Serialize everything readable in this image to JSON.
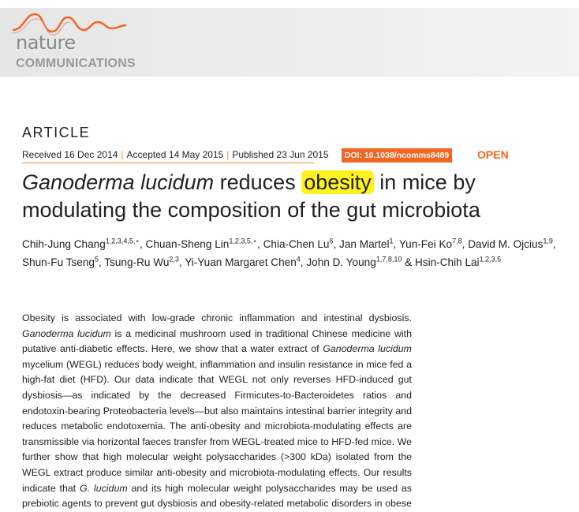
{
  "header": {
    "journal_name": "nature",
    "journal_subtitle": "COMMUNICATIONS"
  },
  "article_type": "ARTICLE",
  "dates": {
    "received": "Received 16 Dec 2014",
    "accepted": "Accepted 14 May 2015",
    "published": "Published 23 Jun 2015",
    "separator": "|"
  },
  "doi": "DOI: 10.1038/ncomms8489",
  "open_access": "OPEN",
  "title": {
    "italic_part": "Ganoderma lucidum",
    "before_highlight": "reduces",
    "highlight": "obesity",
    "rest": "in mice by modulating the composition of the gut microbiota"
  },
  "authors": {
    "separator": ",",
    "final_joiner": "&",
    "list": [
      {
        "name": "Chih-Jung Chang",
        "affiliations": "1,2,3,4,5,⋆"
      },
      {
        "name": "Chuan-Sheng Lin",
        "affiliations": "1,2,3,5,⋆"
      },
      {
        "name": "Chia-Chen Lu",
        "affiliations": "6"
      },
      {
        "name": "Jan Martel",
        "affiliations": "1"
      },
      {
        "name": "Yun-Fei Ko",
        "affiliations": "7,8"
      },
      {
        "name": "David M. Ojcius",
        "affiliations": "1,9"
      },
      {
        "name": "Shun-Fu Tseng",
        "affiliations": "5"
      },
      {
        "name": "Tsung-Ru Wu",
        "affiliations": "2,3"
      },
      {
        "name": "Yi-Yuan Margaret Chen",
        "affiliations": "4"
      },
      {
        "name": "John D. Young",
        "affiliations": "1,7,8,10"
      },
      {
        "name": "Hsin-Chih Lai",
        "affiliations": "1,2,3,5"
      }
    ]
  },
  "abstract": [
    {
      "text": "Obesity is associated with low-grade chronic inflammation and intestinal dysbiosis. ",
      "italic": false
    },
    {
      "text": "Ganoderma lucidum",
      "italic": true
    },
    {
      "text": " is a medicinal mushroom used in traditional Chinese medicine with putative anti-diabetic effects. Here, we show that a water extract of ",
      "italic": false
    },
    {
      "text": "Ganoderma lucidum",
      "italic": true
    },
    {
      "text": " mycelium (WEGL) reduces body weight, inflammation and insulin resistance in mice fed a high-fat diet (HFD). Our data indicate that WEGL not only reverses HFD-induced gut dysbiosis—as indicated by the decreased Firmicutes-to-Bacteroidetes ratios and endotoxin-bearing Proteobacteria levels—but also maintains intestinal barrier integrity and reduces metabolic endotoxemia. The anti-obesity and microbiota-modulating effects are transmissible via horizontal faeces transfer from WEGL-treated mice to HFD-fed mice. We further show that high molecular weight polysaccharides (>300 kDa) isolated from the WEGL extract produce similar anti-obesity and microbiota-modulating effects. Our results indicate that ",
      "italic": false
    },
    {
      "text": "G. lucidum",
      "italic": true
    },
    {
      "text": " and its high molecular weight polysaccharides may be used as prebiotic agents to prevent gut dysbiosis and obesity-related metabolic disorders in obese individuals.",
      "italic": false
    }
  ]
}
